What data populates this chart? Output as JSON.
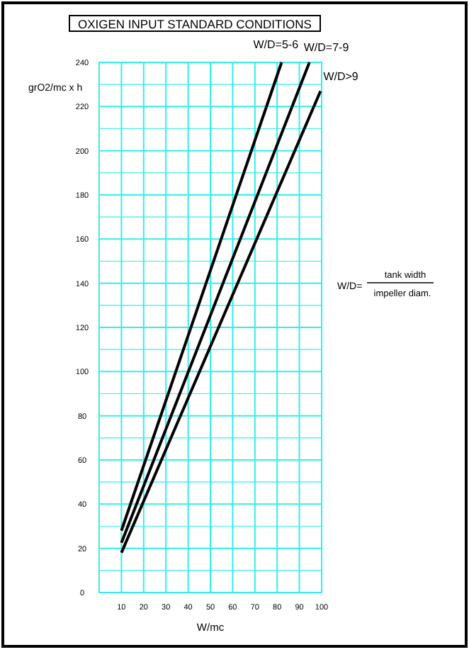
{
  "chart_data": {
    "type": "line",
    "title": "OXIGEN  INPUT STANDARD CONDITIONS",
    "xlabel": "W/mc",
    "ylabel": "grO2/mc x h",
    "xlim": [
      0,
      100
    ],
    "ylim": [
      0,
      240
    ],
    "xticks": [
      10,
      20,
      30,
      40,
      50,
      60,
      70,
      80,
      90,
      100
    ],
    "yticks": [
      0,
      {
        "value": 10,
        "label": null
      },
      20,
      {
        "value": 30,
        "label": null
      },
      40,
      {
        "value": 50,
        "label": null
      },
      60,
      {
        "value": 70,
        "label": null
      },
      80,
      {
        "value": 90,
        "label": null
      },
      100,
      {
        "value": 110,
        "label": null
      },
      120,
      {
        "value": 130,
        "label": null
      },
      140,
      {
        "value": 150,
        "label": null
      },
      160,
      {
        "value": 170,
        "label": null
      },
      180,
      {
        "value": 190,
        "label": null
      },
      200,
      {
        "value": 210,
        "label": null
      },
      220,
      {
        "value": 230,
        "label": null
      },
      240
    ],
    "grid": true,
    "marker": "none",
    "line_style": "solid",
    "series": [
      {
        "name": "W/D=5-6",
        "color": "#000000",
        "x": [
          10,
          82
        ],
        "values": [
          28,
          240
        ]
      },
      {
        "name": "W/D=7-9",
        "color": "#000000",
        "x": [
          10,
          94.5
        ],
        "values": [
          22.5,
          240
        ]
      },
      {
        "name": "W/D>9",
        "color": "#000000",
        "x": [
          10,
          99.5
        ],
        "values": [
          18,
          227
        ]
      }
    ],
    "annotations": [
      "W/D=",
      "tank width",
      "impeller diam."
    ]
  }
}
